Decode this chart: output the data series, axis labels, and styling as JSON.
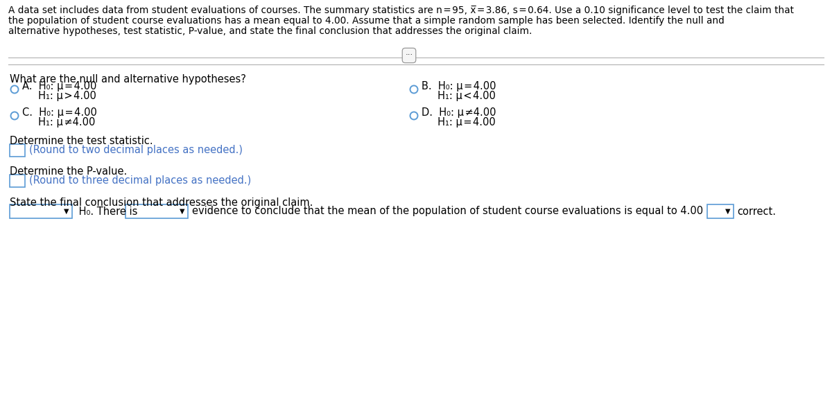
{
  "bg_color": "#ffffff",
  "text_color": "#000000",
  "blue_color": "#4472C4",
  "circle_color": "#5B9BD5",
  "header_lines": [
    "A data set includes data from student evaluations of courses. The summary statistics are n = 95, x̅ = 3.86, s = 0.64. Use a 0.10 significance level to test the claim that",
    "the population of student course evaluations has a mean equal to 4.00. Assume that a simple random sample has been selected. Identify the null and",
    "alternative hypotheses, test statistic, P-value, and state the final conclusion that addresses the original claim."
  ],
  "q1_label": "What are the null and alternative hypotheses?",
  "optA1": "A.  H₀: μ = 4.00",
  "optA2": "     H₁: μ > 4.00",
  "optB1": "B.  H₀: μ = 4.00",
  "optB2": "     H₁: μ < 4.00",
  "optC1": "C.  H₀: μ = 4.00",
  "optC2": "     H₁: μ ≠4.00",
  "optD1": "D.  H₀: μ ≠4.00",
  "optD2": "     H₁: μ = 4.00",
  "q2_label": "Determine the test statistic.",
  "q2_hint": "(Round to two decimal places as needed.)",
  "q3_label": "Determine the P-value.",
  "q3_hint": "(Round to three decimal places as needed.)",
  "q4_label": "State the final conclusion that addresses the original claim.",
  "q4_middle": "evidence to conclude that the mean of the population of student course evaluations is equal to 4.00",
  "q4_h0": " H₀. There is",
  "q4_correct": "correct.",
  "font_size_header": 9.8,
  "font_size_body": 10.5,
  "font_size_hint": 10.5
}
